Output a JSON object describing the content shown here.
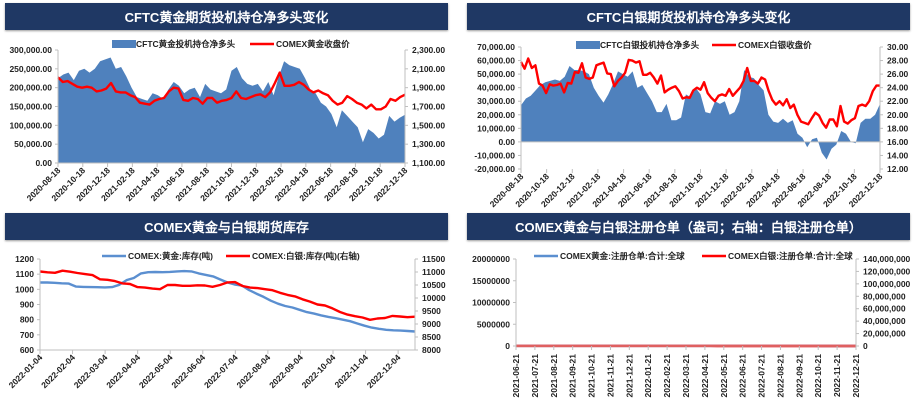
{
  "chart_data": [
    {
      "type": "area+line",
      "title": "CFTC黄金期货投机持仓净多头变化",
      "x_ticks": [
        "2020-08-18",
        "2020-10-18",
        "2020-12-18",
        "2021-02-18",
        "2021-04-18",
        "2021-06-18",
        "2021-08-18",
        "2021-10-18",
        "2021-12-18",
        "2022-02-18",
        "2022-04-18",
        "2022-06-18",
        "2022-08-18",
        "2022-10-18",
        "2022-12-18"
      ],
      "y_left": {
        "range": [
          0,
          300000
        ],
        "ticks": [
          "0.00",
          "50,000.00",
          "100,000.00",
          "150,000.00",
          "200,000.00",
          "250,000.00",
          "300,000.00"
        ]
      },
      "y_right": {
        "range": [
          1100,
          2300
        ],
        "ticks": [
          "1,100.00",
          "1,300.00",
          "1,500.00",
          "1,700.00",
          "1,900.00",
          "2,100.00",
          "2,300.00"
        ]
      },
      "series": [
        {
          "name": "CFTC黄金投机持仓净多头",
          "kind": "area",
          "axis": "left",
          "color": "#4f81bd",
          "values": [
            225000,
            235000,
            240000,
            220000,
            245000,
            250000,
            240000,
            250000,
            270000,
            275000,
            280000,
            250000,
            255000,
            230000,
            200000,
            175000,
            170000,
            165000,
            185000,
            180000,
            170000,
            195000,
            215000,
            205000,
            185000,
            195000,
            200000,
            175000,
            210000,
            195000,
            190000,
            185000,
            195000,
            245000,
            255000,
            225000,
            210000,
            205000,
            210000,
            190000,
            215000,
            180000,
            230000,
            270000,
            260000,
            255000,
            250000,
            225000,
            195000,
            185000,
            160000,
            150000,
            130000,
            95000,
            140000,
            125000,
            110000,
            95000,
            55000,
            90000,
            80000,
            65000,
            75000,
            125000,
            110000,
            120000,
            128000
          ]
        },
        {
          "name": "COMEX黄金收盘价",
          "kind": "line",
          "axis": "right",
          "color": "#ff0000",
          "values": [
            2010,
            1960,
            1970,
            1940,
            1910,
            1900,
            1910,
            1900,
            1860,
            1870,
            1890,
            1950,
            1860,
            1850,
            1850,
            1820,
            1800,
            1740,
            1730,
            1720,
            1760,
            1780,
            1790,
            1860,
            1900,
            1890,
            1770,
            1760,
            1790,
            1780,
            1730,
            1790,
            1790,
            1740,
            1760,
            1770,
            1790,
            1860,
            1790,
            1780,
            1800,
            1820,
            1830,
            1800,
            1850,
            1950,
            2060,
            1920,
            1920,
            1930,
            1960,
            1930,
            1880,
            1850,
            1870,
            1840,
            1820,
            1760,
            1720,
            1740,
            1810,
            1780,
            1740,
            1720,
            1680,
            1720,
            1670,
            1670,
            1700,
            1780,
            1760,
            1800,
            1825
          ]
        }
      ],
      "legend_position": "top-center"
    },
    {
      "type": "area+line",
      "title": "CFTC白银期货投机持仓净多头变化",
      "x_ticks": [
        "2020-08-18",
        "2020-10-18",
        "2020-12-18",
        "2021-02-18",
        "2021-04-18",
        "2021-06-18",
        "2021-08-18",
        "2021-10-18",
        "2021-12-18",
        "2022-02-18",
        "2022-04-18",
        "2022-06-18",
        "2022-08-18",
        "2022-10-18",
        "2022-12-18"
      ],
      "y_left": {
        "range": [
          -20000,
          70000
        ],
        "ticks": [
          "-20,000.00",
          "-10,000.00",
          "0.00",
          "10,000.00",
          "20,000.00",
          "30,000.00",
          "40,000.00",
          "50,000.00",
          "60,000.00",
          "70,000.00"
        ]
      },
      "y_right": {
        "range": [
          12,
          30
        ],
        "ticks": [
          "12.00",
          "14.00",
          "16.00",
          "18.00",
          "20.00",
          "22.00",
          "24.00",
          "26.00",
          "28.00",
          "30.00"
        ]
      },
      "series": [
        {
          "name": "CFTC白银投机持仓净多头",
          "kind": "area",
          "axis": "left",
          "color": "#4f81bd",
          "values": [
            27000,
            32000,
            34000,
            38000,
            42000,
            44000,
            45000,
            46000,
            45000,
            48000,
            56000,
            53000,
            53000,
            52000,
            50000,
            40000,
            34000,
            29000,
            35000,
            43000,
            52000,
            50000,
            48000,
            52000,
            40000,
            42000,
            36000,
            30000,
            22000,
            22000,
            28000,
            16000,
            16000,
            18000,
            35000,
            33000,
            40000,
            35000,
            22000,
            21000,
            30000,
            28000,
            30000,
            20000,
            22000,
            30000,
            53000,
            48000,
            47000,
            42000,
            38000,
            20000,
            15000,
            14000,
            17000,
            14000,
            16000,
            6000,
            3000,
            -4000,
            2000,
            3000,
            -8000,
            -13000,
            -5000,
            -2000,
            8000,
            6000,
            0,
            -1000,
            14000,
            17000,
            17000,
            20000,
            28000
          ]
        },
        {
          "name": "COMEX白银收盘价",
          "kind": "line",
          "axis": "right",
          "color": "#ff0000",
          "values": [
            27.8,
            26.8,
            28.3,
            26.9,
            27.3,
            24.6,
            24.3,
            23.2,
            24.5,
            24.3,
            24.4,
            24.6,
            23.3,
            24.7,
            24.6,
            26.3,
            26.2,
            27.6,
            25.5,
            25.3,
            25.5,
            27.3,
            27.5,
            27.7,
            26.1,
            26.0,
            24.2,
            25.0,
            25.5,
            26.2,
            28.1,
            28.0,
            27.7,
            27.9,
            25.9,
            25.9,
            26.2,
            25.5,
            24.6,
            25.8,
            23.3,
            23.7,
            24.0,
            24.2,
            23.5,
            22.4,
            22.6,
            22.5,
            23.6,
            24.0,
            23.7,
            24.8,
            23.2,
            22.5,
            22.0,
            22.8,
            23.0,
            22.8,
            23.8,
            22.8,
            23.4,
            24.0,
            25.0,
            26.9,
            25.0,
            25.0,
            24.6,
            25.5,
            25.2,
            23.5,
            22.2,
            21.5,
            22.0,
            21.4,
            22.3,
            21.0,
            21.5,
            20.0,
            19.0,
            18.8,
            18.6,
            19.5,
            20.3,
            19.9,
            18.8,
            18.1,
            19.3,
            19.3,
            18.3,
            21.3,
            19.0,
            18.7,
            19.2,
            19.5,
            21.3,
            21.5,
            21.3,
            22.0,
            23.5,
            24.3,
            24.3
          ]
        }
      ],
      "legend_position": "top-center"
    },
    {
      "type": "line",
      "title": "COMEX黄金与白银期货库存",
      "x_ticks": [
        "2022-01-04",
        "2022-02-04",
        "2022-03-04",
        "2022-04-04",
        "2022-05-04",
        "2022-06-04",
        "2022-07-04",
        "2022-08-04",
        "2022-09-04",
        "2022-10-04",
        "2022-11-04",
        "2022-12-04"
      ],
      "y_left": {
        "range": [
          600,
          1200
        ],
        "ticks": [
          "600",
          "700",
          "800",
          "900",
          "1000",
          "1100",
          "1200"
        ]
      },
      "y_right": {
        "range": [
          8000,
          11500
        ],
        "ticks": [
          "8000",
          "8500",
          "9000",
          "9500",
          "10000",
          "10500",
          "11000",
          "11500"
        ]
      },
      "series": [
        {
          "name": "COMEX:黄金:库存(吨)",
          "kind": "line",
          "axis": "left",
          "color": "#5b8fd0",
          "values": [
            1045,
            1045,
            1043,
            1040,
            1038,
            1018,
            1016,
            1015,
            1014,
            1013,
            1015,
            1030,
            1060,
            1075,
            1105,
            1113,
            1114,
            1113,
            1115,
            1118,
            1120,
            1118,
            1105,
            1095,
            1085,
            1065,
            1045,
            1032,
            1025,
            995,
            972,
            950,
            925,
            905,
            890,
            880,
            865,
            850,
            840,
            828,
            818,
            810,
            800,
            790,
            775,
            760,
            748,
            740,
            733,
            730,
            728,
            725,
            722
          ]
        },
        {
          "name": "COMEX:白银:库存(吨)(右轴)",
          "kind": "line",
          "axis": "right",
          "color": "#ff0000",
          "values": [
            11020,
            10990,
            10970,
            11050,
            11010,
            10960,
            10920,
            10880,
            10720,
            10700,
            10650,
            10560,
            10540,
            10420,
            10400,
            10360,
            10340,
            10500,
            10500,
            10470,
            10470,
            10490,
            10480,
            10430,
            10500,
            10600,
            10610,
            10460,
            10400,
            10380,
            10340,
            10300,
            10200,
            10120,
            10060,
            9950,
            9860,
            9750,
            9710,
            9600,
            9460,
            9360,
            9300,
            9250,
            9160,
            9210,
            9230,
            9310,
            9290,
            9260,
            9280
          ]
        }
      ],
      "legend_position": "top-center"
    },
    {
      "type": "line",
      "title": "COMEX黄金与白银注册仓单（盎司；右轴：白银注册仓单）",
      "x_ticks": [
        "2021-06-21",
        "2021-07-21",
        "2021-08-21",
        "2021-09-21",
        "2021-10-21",
        "2021-11-21",
        "2021-12-21",
        "2022-01-21",
        "2022-02-21",
        "2022-03-21",
        "2022-04-21",
        "2022-05-21",
        "2022-06-21",
        "2022-07-21",
        "2022-08-21",
        "2022-09-21",
        "2022-10-21",
        "2022-11-21",
        "2022-12-21"
      ],
      "y_left": {
        "range": [
          0,
          20000000
        ],
        "ticks": [
          "0",
          "5000000",
          "10000000",
          "15000000",
          "20000000"
        ]
      },
      "y_right": {
        "range": [
          0,
          140000000
        ],
        "ticks": [
          "0",
          "20,000,000",
          "40,000,000",
          "60,000,000",
          "80,000,000",
          "100,000,000",
          "120,000,000",
          "140,000,000"
        ]
      },
      "series": [
        {
          "name": "COMEX黄金:注册仓单:合计:全球",
          "kind": "line",
          "axis": "left",
          "color": "#5b8fd0",
          "values": [
            18300,
            18200,
            18200,
            18800,
            18700,
            18300,
            18200,
            18100,
            17900,
            17500,
            17400,
            17300,
            17200,
            17500,
            17700,
            17300,
            17400,
            17300,
            17200,
            17100,
            16900,
            17000,
            17100,
            17300,
            17400,
            18000,
            18100,
            18100,
            17900,
            17800,
            17700,
            17500,
            17000,
            16700,
            16200,
            15500,
            14800,
            14200,
            13600,
            13300,
            12900,
            12700,
            12200,
            11500,
            11000,
            10800,
            10800,
            11300,
            11300,
            11000
          ]
        },
        {
          "name": "COMEX白银:注册仓单:合计:全球",
          "kind": "line",
          "axis": "right",
          "color": "#ff0000",
          "values": [
            112000,
            111000,
            112000,
            115000,
            108000,
            108000,
            109000,
            108000,
            105000,
            102000,
            100000,
            98000,
            97000,
            98000,
            93000,
            92000,
            81000,
            81000,
            82000,
            81000,
            81000,
            84000,
            92000,
            93000,
            86000,
            86000,
            86000,
            82000,
            81000,
            74000,
            72000,
            71000,
            68000,
            62000,
            58000,
            56000,
            56000,
            52000,
            47000,
            44000,
            42000,
            40000,
            37000,
            34000,
            34000,
            35000,
            34000,
            32000,
            33000,
            37000
          ]
        }
      ],
      "legend_position": "top-center"
    }
  ]
}
